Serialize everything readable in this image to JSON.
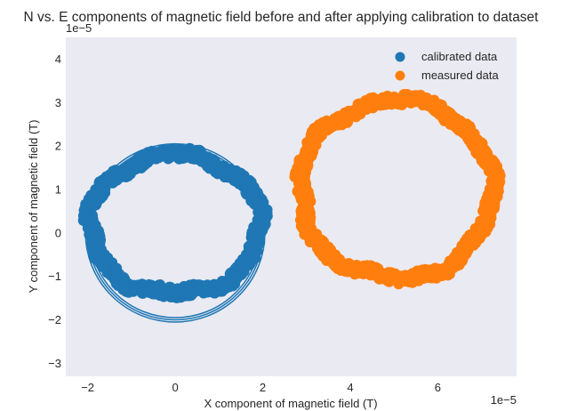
{
  "chart_data": {
    "type": "scatter",
    "title": "N vs. E components of magnetic field before and after applying calibration to  dataset",
    "xlabel": "X component of magnetic field (T)",
    "ylabel": "Y component of magnetic field (T)",
    "x_offset_text": "1e−5",
    "y_offset_text": "1e−5",
    "xlim": [
      -2.5,
      7.8
    ],
    "ylim": [
      -3.3,
      4.5
    ],
    "x_ticks": [
      -2,
      0,
      2,
      4,
      6
    ],
    "y_ticks": [
      -3,
      -2,
      -1,
      0,
      1,
      2,
      3,
      4
    ],
    "x_tick_labels": [
      "−2",
      "0",
      "2",
      "4",
      "6"
    ],
    "y_tick_labels": [
      "−3",
      "−2",
      "−1",
      "0",
      "1",
      "2",
      "3",
      "4"
    ],
    "grid": false,
    "background": "#EAEAF2",
    "legend_position": "top-right",
    "series": [
      {
        "name": "calibrated data",
        "color": "#1F77B4",
        "ring": {
          "center": [
            0.0,
            0.2
          ],
          "radius_x": 1.95,
          "radius_y": 1.6,
          "thickness": 0.25
        }
      },
      {
        "name": "measured data",
        "color": "#FF7F0E",
        "ring": {
          "center": [
            5.05,
            1.0
          ],
          "radius_x": 2.2,
          "radius_y": 2.05,
          "thickness": 0.25
        }
      }
    ],
    "reference_circle": {
      "center": [
        0.0,
        0.0
      ],
      "radius": 2.05,
      "color": "#1F77B4"
    }
  }
}
